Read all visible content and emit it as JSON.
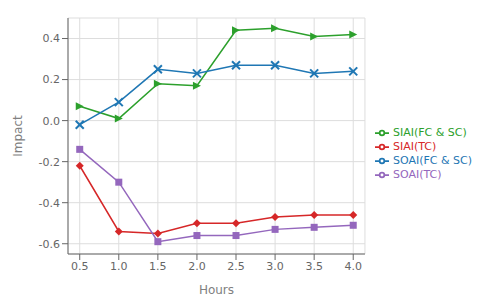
{
  "chart_data": {
    "type": "line",
    "x_label": "Hours",
    "y_label": "Impact",
    "x": [
      0.5,
      1.0,
      1.5,
      2.0,
      2.5,
      3.0,
      3.5,
      4.0
    ],
    "series": [
      {
        "name": "SIAI(FC & SC)",
        "color": "#2ca02c",
        "marker": "triangle-right",
        "values": [
          0.07,
          0.01,
          0.18,
          0.17,
          0.44,
          0.45,
          0.41,
          0.42
        ]
      },
      {
        "name": "SIAI(TC)",
        "color": "#d62728",
        "marker": "diamond",
        "values": [
          -0.22,
          -0.54,
          -0.55,
          -0.5,
          -0.5,
          -0.47,
          -0.46,
          -0.46
        ]
      },
      {
        "name": "SOAI(FC & SC)",
        "color": "#1f77b4",
        "marker": "x",
        "values": [
          -0.02,
          0.09,
          0.25,
          0.23,
          0.27,
          0.27,
          0.23,
          0.24
        ]
      },
      {
        "name": "SOAI(TC)",
        "color": "#9467bd",
        "marker": "square",
        "values": [
          -0.14,
          -0.3,
          -0.59,
          -0.56,
          -0.56,
          -0.53,
          -0.52,
          -0.51
        ]
      }
    ],
    "xlim": [
      0.35,
      4.15
    ],
    "ylim": [
      -0.65,
      0.5
    ],
    "xticks": [
      0.5,
      {
        "value": 1.0,
        "label": "1.0"
      },
      1.5,
      {
        "value": 2.0,
        "label": "2.0"
      },
      2.5,
      {
        "value": 3.0,
        "label": "3.0"
      },
      3.5,
      {
        "value": 4.0,
        "label": "4.0"
      }
    ],
    "yticks": [
      -0.6,
      -0.4,
      -0.2,
      {
        "value": 0.0,
        "label": "0.0"
      },
      0.2,
      0.4
    ],
    "grid": true,
    "legend": "right"
  }
}
